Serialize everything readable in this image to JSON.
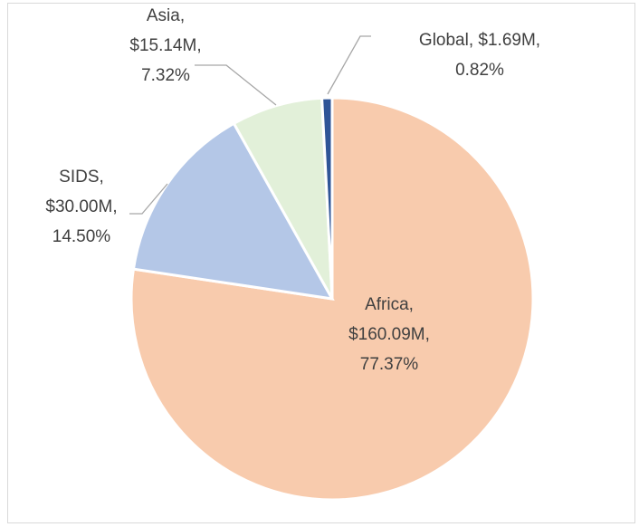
{
  "chart_data": {
    "type": "pie",
    "categories": [
      "Africa",
      "SIDS",
      "Asia",
      "Global"
    ],
    "values": [
      160.09,
      30.0,
      15.14,
      1.69
    ],
    "value_labels": [
      "$160.09M",
      "$30.00M",
      "$15.14M",
      "$1.69M"
    ],
    "percents": [
      77.37,
      14.5,
      7.32,
      0.82
    ],
    "percent_labels": [
      "77.37%",
      "14.50%",
      "7.32%",
      "0.82%"
    ],
    "separator": ",",
    "colors": [
      "#f8cbad",
      "#b4c7e7",
      "#e2f0d9",
      "#2f5597"
    ]
  }
}
